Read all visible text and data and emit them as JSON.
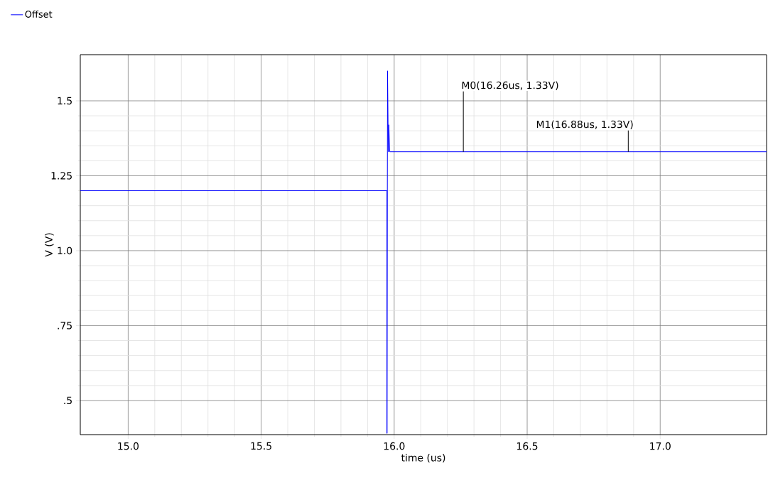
{
  "chart_data": {
    "type": "line",
    "xlabel": "time (us)",
    "ylabel": "V (V)",
    "x": [
      14.82,
      15.973,
      15.973,
      15.975,
      15.978,
      15.98,
      15.983,
      17.4
    ],
    "series": [
      {
        "name": "Offset",
        "color": "#0000ff",
        "values": [
          1.2,
          1.2,
          0.39,
          1.6,
          1.33,
          1.42,
          1.33,
          1.33
        ]
      }
    ],
    "xlim": [
      14.82,
      17.4
    ],
    "ylim": [
      0.386,
      1.654
    ],
    "xticks": [
      {
        "value": 15,
        "label": "15.0"
      },
      {
        "value": 15.5,
        "label": "15.5"
      },
      {
        "value": 16,
        "label": "16.0"
      },
      {
        "value": 16.5,
        "label": "16.5"
      },
      {
        "value": 17,
        "label": "17.0"
      }
    ],
    "yticks": [
      {
        "value": 0.5,
        "label": ".5"
      },
      {
        "value": 0.75,
        "label": ".75"
      },
      {
        "value": 1,
        "label": "1.0"
      },
      {
        "value": 1.25,
        "label": "1.25"
      },
      {
        "value": 1.5,
        "label": "1.5"
      }
    ],
    "annotations": [
      {
        "text": "M0(16.26us, 1.33V)",
        "x": 16.26,
        "y": 1.33
      },
      {
        "text": "M1(16.88us, 1.33V)",
        "x": 16.88,
        "y": 1.33
      }
    ],
    "grid": true,
    "legend": "top left",
    "marker": "none",
    "line_style": "solid"
  }
}
